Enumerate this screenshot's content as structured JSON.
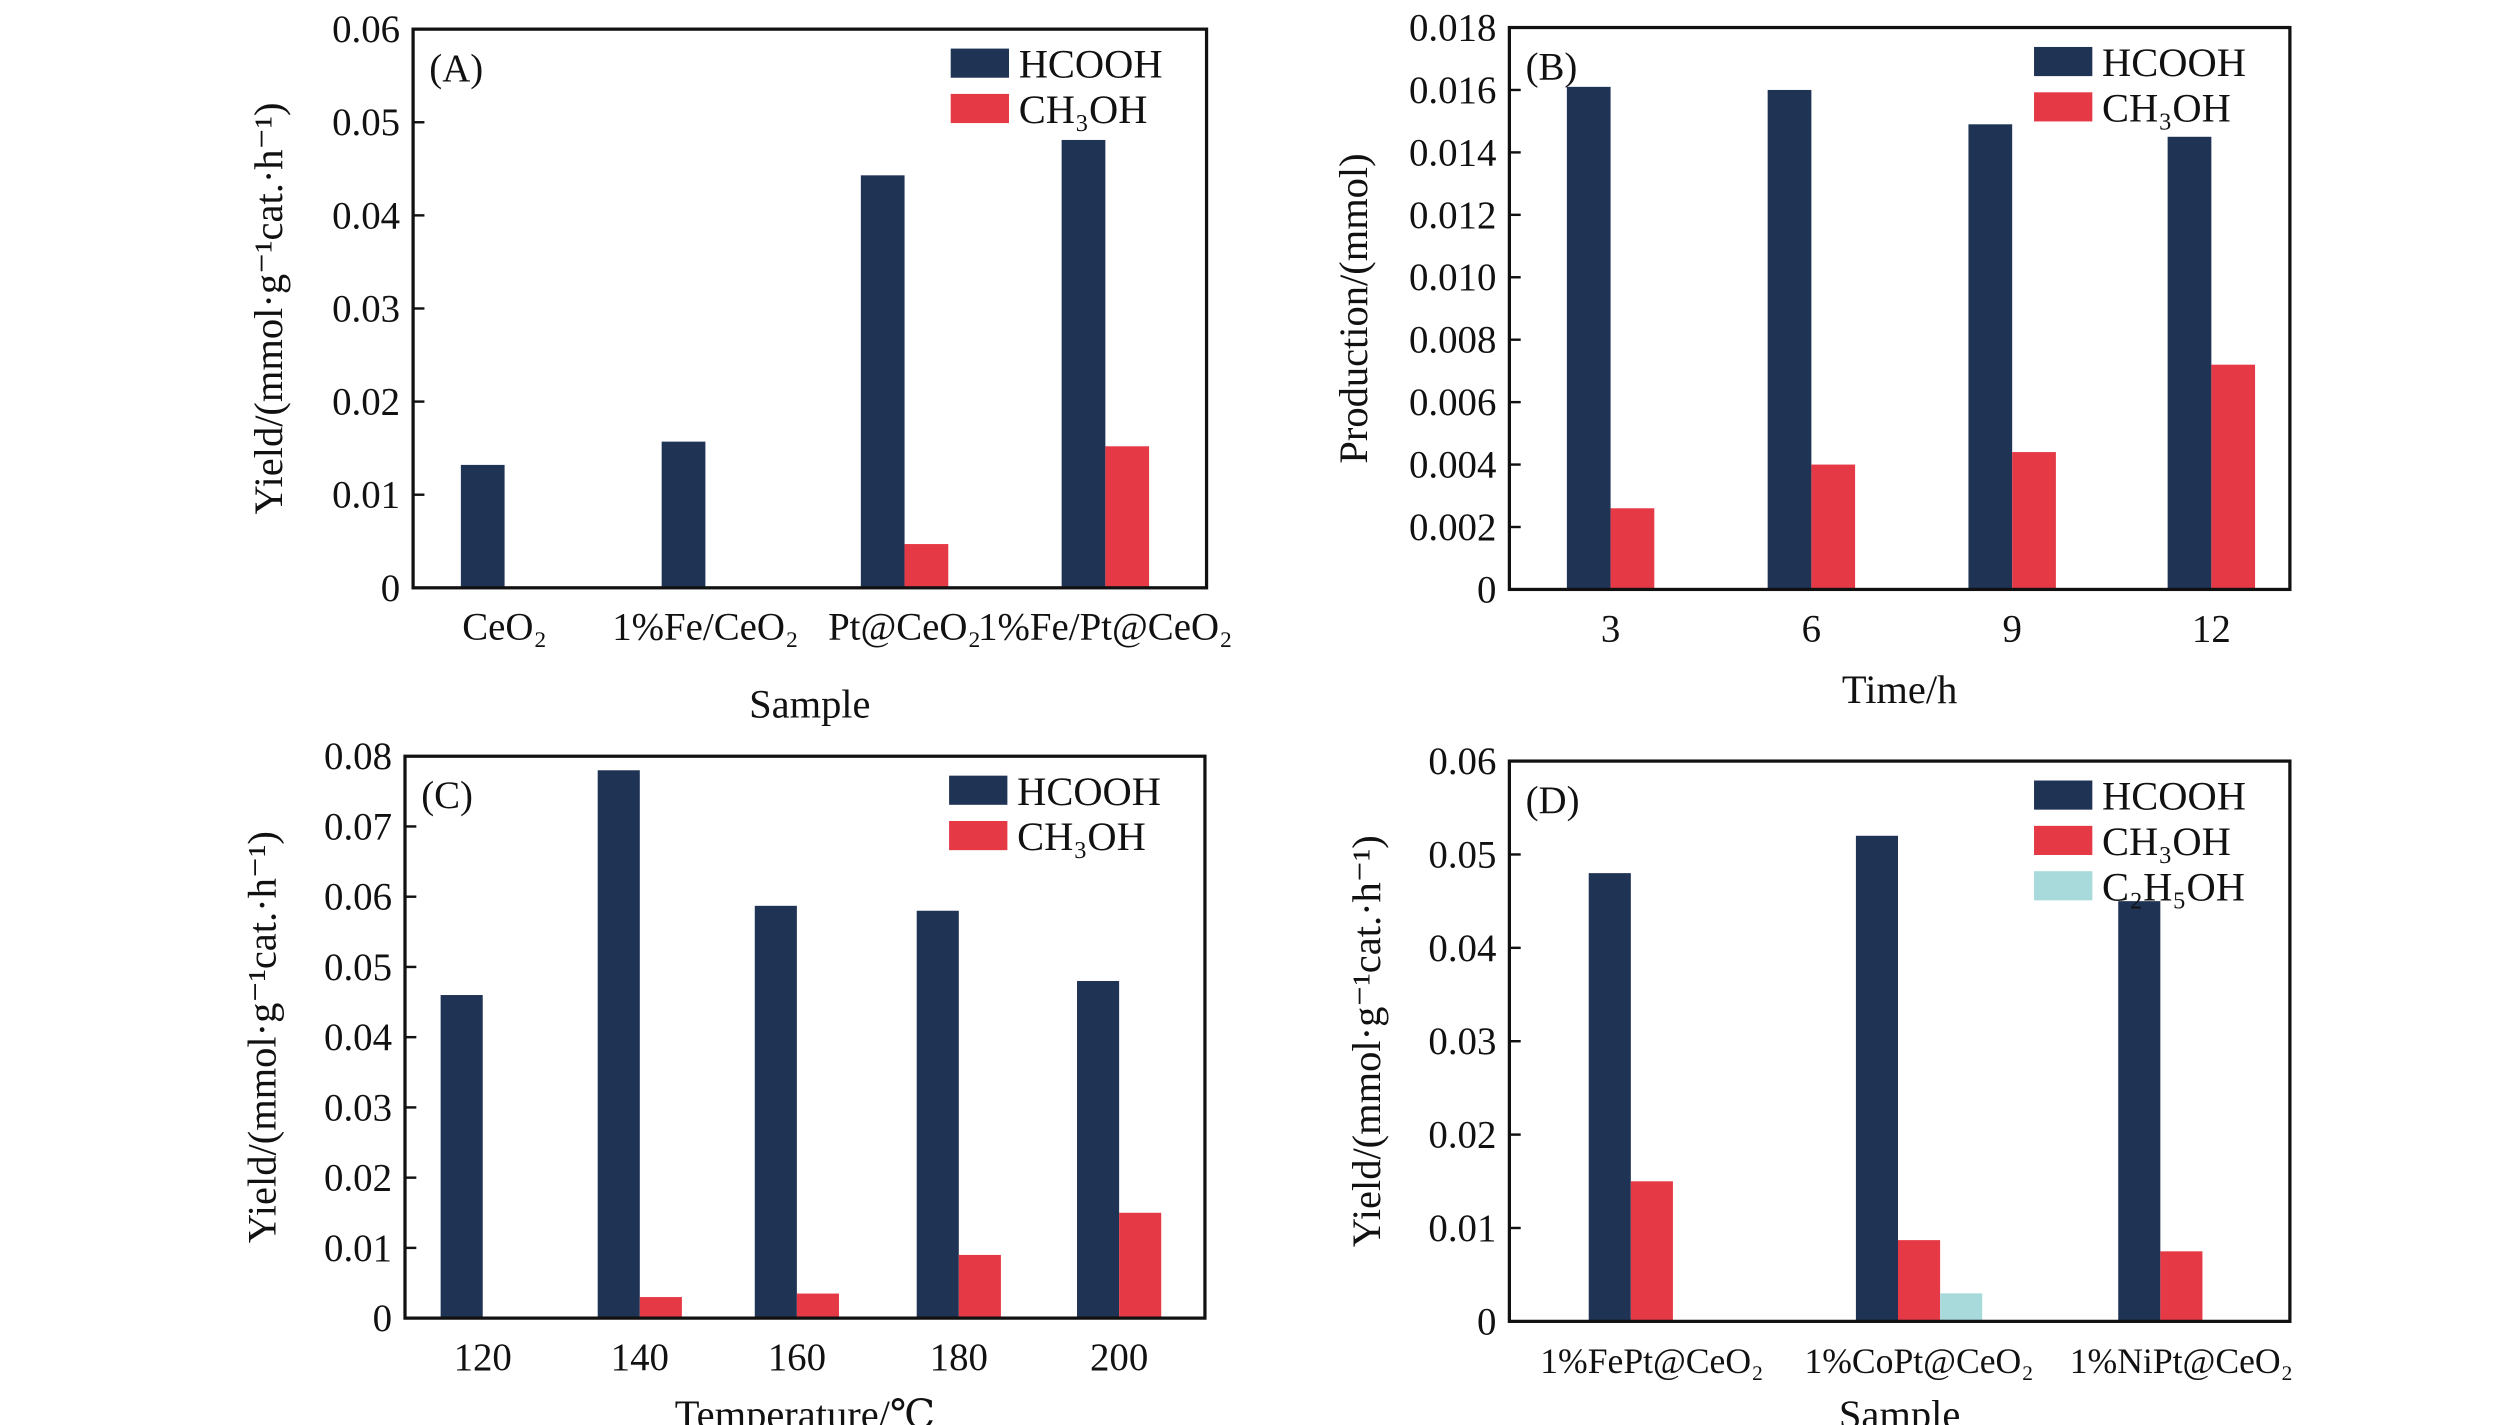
{
  "colors": {
    "HCOOH": "#1f3355",
    "CH3OH": "#e63946",
    "C2H5OH": "#a8dadc"
  },
  "chart_data": [
    {
      "type": "bar",
      "panel_label": "(A)",
      "categories": [
        "CeO₂",
        "1%Fe/CeO₂",
        "Pt@CeO₂",
        "1%Fe/Pt@CeO₂"
      ],
      "series": [
        {
          "name": "HCOOH",
          "legend": "HCOOH",
          "values": [
            0.0132,
            0.0157,
            0.0443,
            0.0481
          ]
        },
        {
          "name": "CH3OH",
          "legend": "CH₃OH",
          "values": [
            0,
            0,
            0.0047,
            0.0152
          ]
        }
      ],
      "xlabel": "Sample",
      "ylabel": "Yield/(mmol·g⁻¹cat.·h⁻¹)",
      "ylim": [
        0,
        0.06
      ],
      "yticks": [
        "0",
        "0.01",
        "0.02",
        "0.03",
        "0.04",
        "0.05",
        "0.06"
      ],
      "legend_position": "top-right"
    },
    {
      "type": "bar",
      "panel_label": "(B)",
      "categories": [
        "3",
        "6",
        "9",
        "12"
      ],
      "series": [
        {
          "name": "HCOOH",
          "legend": "HCOOH",
          "values": [
            0.0161,
            0.016,
            0.0149,
            0.0145
          ]
        },
        {
          "name": "CH3OH",
          "legend": "CH₃OH",
          "values": [
            0.0026,
            0.004,
            0.0044,
            0.0072
          ]
        }
      ],
      "xlabel": "Time/h",
      "ylabel": "Production/(mmol)",
      "ylim": [
        0,
        0.018
      ],
      "yticks": [
        "0",
        "0.002",
        "0.004",
        "0.006",
        "0.008",
        "0.010",
        "0.012",
        "0.014",
        "0.016",
        "0.018"
      ],
      "legend_position": "top-right"
    },
    {
      "type": "bar",
      "panel_label": "(C)",
      "categories": [
        "120",
        "140",
        "160",
        "180",
        "200"
      ],
      "series": [
        {
          "name": "HCOOH",
          "legend": "HCOOH",
          "values": [
            0.046,
            0.078,
            0.0587,
            0.058,
            0.048
          ]
        },
        {
          "name": "CH3OH",
          "legend": "CH₃OH",
          "values": [
            0,
            0.003,
            0.0035,
            0.009,
            0.015
          ]
        }
      ],
      "xlabel": "Temperature/℃",
      "ylabel": "Yield/(mmol·g⁻¹cat.·h⁻¹)",
      "ylim": [
        0,
        0.08
      ],
      "yticks": [
        "0",
        "0.01",
        "0.02",
        "0.03",
        "0.04",
        "0.05",
        "0.06",
        "0.07",
        "0.08"
      ],
      "legend_position": "top-right"
    },
    {
      "type": "bar",
      "panel_label": "(D)",
      "categories": [
        "1%FePt@CeO₂",
        "1%CoPt@CeO₂",
        "1%NiPt@CeO₂"
      ],
      "series": [
        {
          "name": "HCOOH",
          "legend": "HCOOH",
          "values": [
            0.048,
            0.052,
            0.045
          ]
        },
        {
          "name": "CH3OH",
          "legend": "CH₃OH",
          "values": [
            0.015,
            0.0087,
            0.0075
          ]
        },
        {
          "name": "C2H5OH",
          "legend": "C₂H₅OH",
          "values": [
            0,
            0.003,
            0
          ]
        }
      ],
      "xlabel": "Sample",
      "ylabel": "Yield/(mmol·g⁻¹cat.·h⁻¹)",
      "ylim": [
        0,
        0.06
      ],
      "yticks": [
        "0",
        "0.01",
        "0.02",
        "0.03",
        "0.04",
        "0.05",
        "0.06"
      ],
      "legend_position": "top-right"
    }
  ]
}
